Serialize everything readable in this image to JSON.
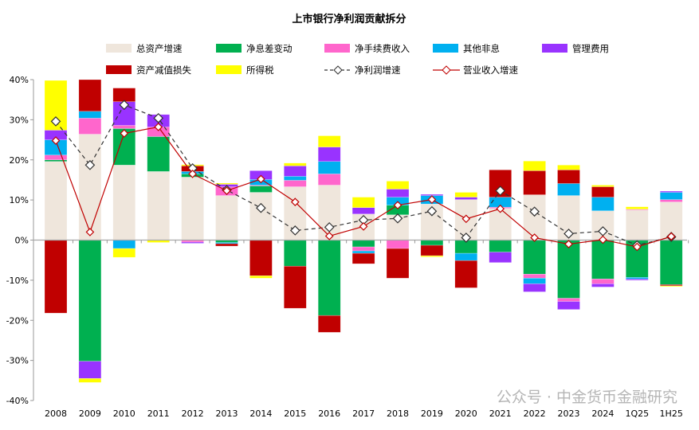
{
  "chart_data": {
    "type": "bar",
    "stacked": true,
    "title": "上市银行净利润贡献拆分",
    "xlabel": "",
    "ylabel": "",
    "ylim": [
      -40,
      40
    ],
    "yticks": [
      "-40%",
      "-30%",
      "-20%",
      "-10%",
      "0%",
      "10%",
      "20%",
      "30%",
      "40%"
    ],
    "ytick_values": [
      -40,
      -30,
      -20,
      -10,
      0,
      10,
      20,
      30,
      40
    ],
    "grid": false,
    "legend_position": "top",
    "categories": [
      "2008",
      "2009",
      "2010",
      "2011",
      "2012",
      "2013",
      "2014",
      "2015",
      "2016",
      "2017",
      "2018",
      "2019",
      "2020",
      "2021",
      "2022",
      "2023",
      "2024",
      "1Q25",
      "1H25"
    ],
    "series": [
      {
        "name": "总资产增速",
        "kind": "bar",
        "color": "#EFE6DC",
        "values": [
          19.6,
          26.4,
          18.7,
          17.1,
          15.7,
          11.1,
          11.9,
          13.3,
          13.7,
          6.5,
          6.3,
          9.0,
          10.1,
          7.9,
          11.3,
          11.1,
          7.3,
          7.5,
          9.5
        ]
      },
      {
        "name": "净息差变动",
        "kind": "bar",
        "color": "#00B050",
        "values": [
          0.4,
          -30.2,
          9.1,
          8.7,
          0.8,
          -0.6,
          1.6,
          -6.5,
          -18.8,
          -1.7,
          2.4,
          -1.3,
          -3.3,
          -3.0,
          -8.5,
          -14.5,
          -9.7,
          -9.3,
          -11.1
        ]
      },
      {
        "name": "净手续费收入",
        "kind": "bar",
        "color": "#FF66CC",
        "values": [
          1.2,
          4.0,
          0.8,
          2.4,
          -0.5,
          2.2,
          0.2,
          1.6,
          2.8,
          -1.0,
          -2.1,
          0,
          0,
          0.3,
          -1.0,
          -0.8,
          -1.2,
          0.2,
          0.6
        ]
      },
      {
        "name": "其他非息",
        "kind": "bar",
        "color": "#00B0F0",
        "values": [
          3.8,
          1.7,
          -2.1,
          0,
          0.6,
          -0.3,
          1.4,
          1.0,
          3.1,
          -0.6,
          2.0,
          2.1,
          -1.8,
          2.5,
          -1.4,
          3.0,
          3.4,
          -0.4,
          1.8
        ]
      },
      {
        "name": "管理费用",
        "kind": "bar",
        "color": "#9933FF",
        "values": [
          2.4,
          -4.3,
          5.9,
          3.1,
          -0.3,
          0.6,
          2.2,
          2.6,
          3.6,
          1.6,
          2.0,
          0.3,
          0.6,
          -2.6,
          -2.0,
          -2.0,
          -0.8,
          -0.3,
          0.3
        ]
      },
      {
        "name": "资产减值损失",
        "kind": "bar",
        "color": "#C00000",
        "values": [
          -18.2,
          7.9,
          3.4,
          0,
          1.4,
          -0.6,
          -8.9,
          -10.5,
          -4.2,
          -2.6,
          -7.4,
          -2.6,
          -6.8,
          6.8,
          6.0,
          3.4,
          2.6,
          0,
          -0.3
        ]
      },
      {
        "name": "所得税",
        "kind": "bar",
        "color": "#FFFF00",
        "values": [
          12.4,
          -1.0,
          -2.2,
          -0.6,
          0.3,
          0.3,
          -0.6,
          0.7,
          2.8,
          2.6,
          2.0,
          -0.3,
          1.2,
          0,
          2.4,
          1.2,
          0.4,
          0.6,
          -0.2
        ]
      },
      {
        "name": "净利润增速",
        "kind": "line",
        "style": "dashed",
        "color": "#000000",
        "values": [
          29.6,
          18.7,
          33.7,
          30.4,
          17.9,
          12.5,
          8.0,
          2.4,
          3.2,
          5.0,
          5.4,
          7.2,
          0.6,
          12.3,
          7.1,
          1.6,
          2.2,
          -1.3,
          0.8
        ]
      },
      {
        "name": "营业收入增速",
        "kind": "line",
        "style": "solid",
        "color": "#C00000",
        "values": [
          24.8,
          2.0,
          26.6,
          28.2,
          16.5,
          12.3,
          15.2,
          9.5,
          1.0,
          3.4,
          8.7,
          10.1,
          5.3,
          7.8,
          0.6,
          -1.0,
          0.1,
          -1.7,
          0.9
        ]
      }
    ]
  },
  "watermark": "公众号 · 中金货币金融研究"
}
